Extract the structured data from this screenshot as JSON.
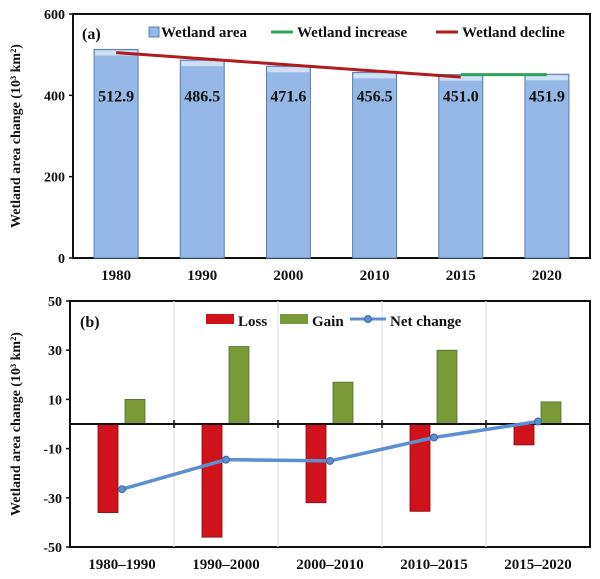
{
  "chart_data": [
    {
      "type": "bar",
      "panel_label": "(a)",
      "ylabel": "Wetland area change (10³ km²)",
      "categories": [
        "1980",
        "1990",
        "2000",
        "2010",
        "2015",
        "2020"
      ],
      "values": [
        512.9,
        486.5,
        471.6,
        456.5,
        451.0,
        451.9
      ],
      "data_labels": [
        "512.9",
        "486.5",
        "471.6",
        "456.5",
        "451.0",
        "451.9"
      ],
      "ylim": [
        0,
        600
      ],
      "yticks": [
        "0",
        "200",
        "400",
        "600"
      ],
      "legend": {
        "placement": "top",
        "entries": [
          "Wetland area",
          "Wetland increase",
          "Wetland decline"
        ]
      },
      "lines": [
        {
          "name": "Wetland decline",
          "from": "1980",
          "to": "2015",
          "y": [
            505,
            445
          ]
        },
        {
          "name": "Wetland increase",
          "from": "2015",
          "to": "2020",
          "y": [
            451,
            451
          ]
        }
      ],
      "colors": {
        "bar": "#95b8e6",
        "bar_edge": "#5a7fb0",
        "decline": "#b01c1c",
        "increase": "#2aa55a"
      }
    },
    {
      "type": "bar",
      "panel_label": "(b)",
      "ylabel": "Wetland area change (10³ km²)",
      "categories": [
        "1980–1990",
        "1990–2000",
        "2000–2010",
        "2010–2015",
        "2015–2020"
      ],
      "series": [
        {
          "name": "Loss",
          "values": [
            -36,
            -46,
            -32,
            -35.5,
            -8.5
          ]
        },
        {
          "name": "Gain",
          "values": [
            10,
            31.5,
            17,
            30,
            9
          ]
        },
        {
          "name": "Net change",
          "type": "line",
          "values": [
            -26.5,
            -14.5,
            -15,
            -5.5,
            1
          ]
        }
      ],
      "ylim": [
        -50,
        50
      ],
      "yticks": [
        "-50",
        "-30",
        "-10",
        "10",
        "30",
        "50"
      ],
      "legend": {
        "placement": "top"
      },
      "colors": {
        "loss": "#d0121a",
        "gain": "#7a9a3a",
        "net": "#5b8fd0"
      }
    }
  ]
}
